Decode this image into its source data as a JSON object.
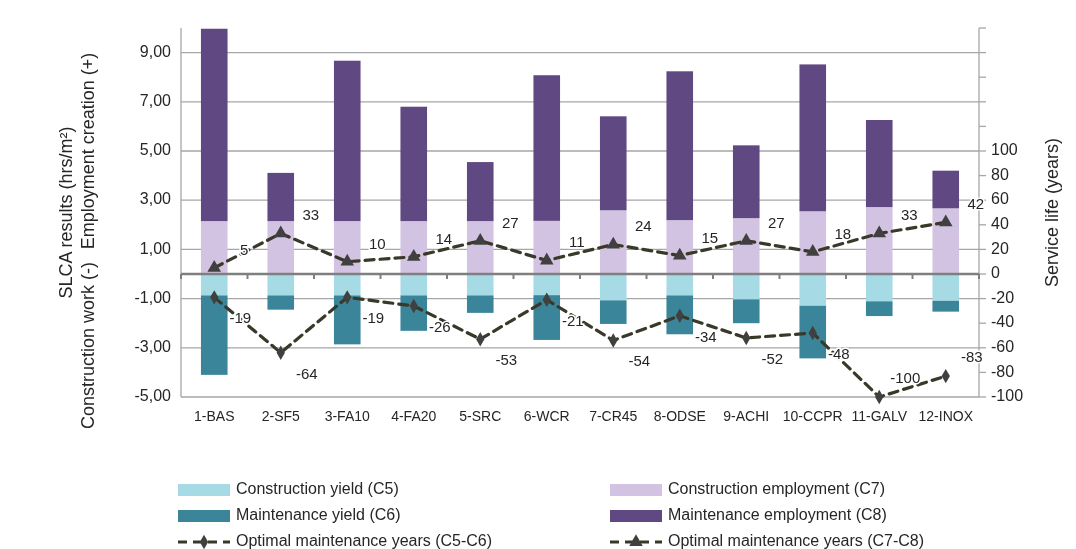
{
  "chart_data": {
    "type": "bar",
    "stacked": true,
    "categories": [
      "1-BAS",
      "2-SF5",
      "3-FA10",
      "4-FA20",
      "5-SRC",
      "6-WCR",
      "7-CR45",
      "8-ODSE",
      "9-ACHI",
      "10-CCPR",
      "11-GALV",
      "12-INOX"
    ],
    "ylabel": "SLCA  results (hrs/m²)",
    "y2label": "Service life (years)",
    "annotations": [
      "Employment creation (+)",
      "Construction work (-)"
    ],
    "ylim": [
      -5,
      10
    ],
    "yticks": [
      {
        "value": -5,
        "label": "-5,00"
      },
      {
        "value": -3,
        "label": "-3,00"
      },
      {
        "value": -1,
        "label": "-1,00"
      },
      {
        "value": 1,
        "label": "1,00"
      },
      {
        "value": 3,
        "label": "3,00"
      },
      {
        "value": 5,
        "label": "5,00"
      },
      {
        "value": 7,
        "label": "7,00"
      },
      {
        "value": 9,
        "label": "9,00"
      }
    ],
    "y2lim": [
      -100,
      200
    ],
    "y2ticks": [
      -100,
      -80,
      -60,
      -40,
      -20,
      0,
      20,
      40,
      60,
      80,
      100,
      {
        "value": 120,
        "label": null
      },
      {
        "value": 140,
        "label": null
      },
      {
        "value": 160,
        "label": null
      },
      {
        "value": 180,
        "label": null
      },
      {
        "value": 200,
        "label": null
      }
    ],
    "grid": "y",
    "legend": "bottom",
    "series": [
      {
        "name": "Construction yield (C5)",
        "color": "#a6dbe6",
        "values": [
          -0.87,
          -0.87,
          -0.87,
          -0.87,
          -0.87,
          -0.86,
          -1.07,
          -0.87,
          -1.03,
          -1.29,
          -1.11,
          -1.09
        ]
      },
      {
        "name": "Construction employment (C7)",
        "color": "#d3c3e3",
        "values": [
          2.15,
          2.15,
          2.15,
          2.15,
          2.15,
          2.16,
          2.59,
          2.19,
          2.27,
          2.55,
          2.72,
          2.67
        ]
      },
      {
        "name": "Maintenance yield (C6)",
        "color": "#3a8599",
        "values": [
          -3.23,
          -0.58,
          -1.99,
          -1.44,
          -0.71,
          -1.82,
          -0.96,
          -1.58,
          -0.97,
          -2.14,
          -0.6,
          -0.44
        ]
      },
      {
        "name": "Maintenance employment (C8)",
        "color": "#604883",
        "values": [
          7.82,
          1.96,
          6.52,
          4.65,
          2.4,
          5.92,
          3.82,
          6.05,
          2.96,
          5.97,
          3.54,
          1.53
        ]
      },
      {
        "name": "Optimal maintenance years (C5-C6)",
        "type": "line",
        "axis": "y2",
        "color": "#3a3828",
        "marker": "diamond",
        "line_style": "dashed",
        "values": [
          -19,
          -64,
          -19,
          -26,
          -53,
          -21,
          -54,
          -34,
          -52,
          -48,
          -100,
          -83
        ],
        "value_labels": [
          "-19",
          "-64",
          "-19",
          "-26",
          "-53",
          "-21",
          "-54",
          "-34",
          "-52",
          "-48",
          "-100",
          "-83"
        ]
      },
      {
        "name": "Optimal maintenance years (C7-C8)",
        "type": "line",
        "axis": "y2",
        "color": "#3a3828",
        "marker": "triangle",
        "line_style": "dashed",
        "values": [
          5,
          33,
          10,
          14,
          27,
          11,
          24,
          15,
          27,
          18,
          33,
          42
        ],
        "value_labels": [
          "5",
          "33",
          "10",
          "14",
          "27",
          "11",
          "24",
          "15",
          "27",
          "18",
          "33",
          "42"
        ]
      }
    ]
  }
}
